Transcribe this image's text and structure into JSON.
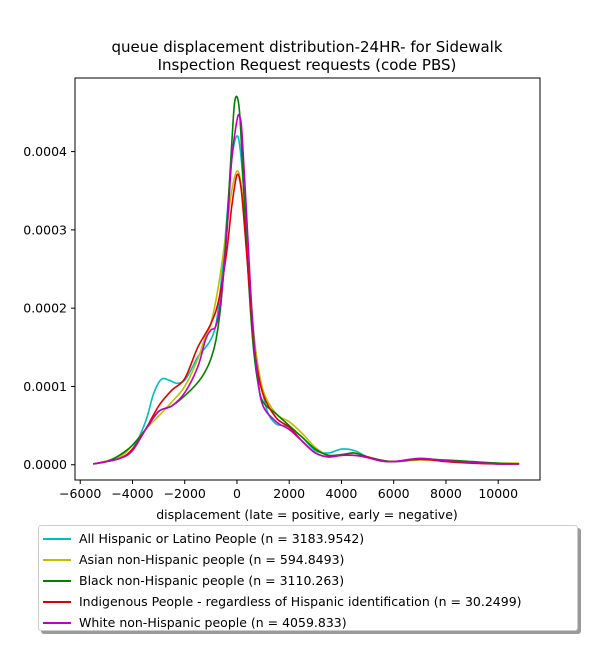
{
  "chart_data": {
    "type": "line",
    "title": "queue displacement distribution-24HR-  for Sidewalk\nInspection Request  requests (code PBS)",
    "xlabel": "displacement (late = positive, early = negative)",
    "ylabel": "",
    "xlim": [
      -6200,
      11600
    ],
    "ylim": [
      -1.95e-05,
      0.000494
    ],
    "x_ticks": [
      -6000,
      -4000,
      -2000,
      0,
      2000,
      4000,
      6000,
      8000,
      10000
    ],
    "x_tick_labels": [
      "−6000",
      "−4000",
      "−2000",
      "0",
      "2000",
      "4000",
      "6000",
      "8000",
      "10000"
    ],
    "y_ticks": [
      0.0,
      0.0001,
      0.0002,
      0.0003,
      0.0004
    ],
    "y_tick_labels": [
      "0.0000",
      "0.0001",
      "0.0002",
      "0.0003",
      "0.0004"
    ],
    "grid": false,
    "legend_placement": "below",
    "series": [
      {
        "name": "All Hispanic or Latino People (n = 3183.9542)",
        "color": "#00bfbf",
        "x": [
          -5500,
          -4500,
          -4000,
          -3500,
          -3200,
          -2900,
          -2600,
          -2300,
          -2000,
          -1700,
          -1500,
          -1200,
          -1000,
          -800,
          -600,
          -400,
          -200,
          0,
          150,
          300,
          500,
          700,
          1000,
          1200,
          1500,
          1800,
          2000,
          2500,
          3000,
          3500,
          4000,
          4500,
          5000,
          5500,
          6000,
          6500,
          7000,
          7500,
          8000,
          8500,
          9000,
          10000,
          10800
        ],
        "y": [
          1e-06,
          8e-06,
          2e-05,
          5.5e-05,
          9e-05,
          0.000109,
          0.000108,
          0.000104,
          0.000108,
          0.000125,
          0.000138,
          0.00015,
          0.00016,
          0.00018,
          0.000235,
          0.00031,
          0.00039,
          0.00042,
          0.000395,
          0.00033,
          0.00023,
          0.00015,
          9e-05,
          6.5e-05,
          5.2e-05,
          5e-05,
          4.8e-05,
          3.5e-05,
          1.8e-05,
          1.5e-05,
          2e-05,
          1.8e-05,
          1e-05,
          5e-06,
          4e-06,
          5e-06,
          8e-06,
          7e-06,
          5e-06,
          4e-06,
          3e-06,
          1e-06,
          1e-06
        ]
      },
      {
        "name": "Asian non-Hispanic people (n = 594.8493)",
        "color": "#bfbf00",
        "x": [
          -5500,
          -4500,
          -4000,
          -3500,
          -3000,
          -2500,
          -2000,
          -1500,
          -1200,
          -1000,
          -700,
          -400,
          -200,
          0,
          150,
          300,
          500,
          700,
          1000,
          1500,
          2000,
          2500,
          3000,
          3500,
          4000,
          4500,
          5000,
          5500,
          6000,
          7000,
          8000,
          9000,
          10000,
          10800
        ],
        "y": [
          1e-06,
          1e-05,
          2.5e-05,
          4.5e-05,
          6.2e-05,
          8e-05,
          0.0001,
          0.000135,
          0.000165,
          0.00018,
          0.00023,
          0.0003,
          0.00035,
          0.000375,
          0.00036,
          0.00031,
          0.00022,
          0.00015,
          9.5e-05,
          6.5e-05,
          5.5e-05,
          4e-05,
          2.2e-05,
          1.2e-05,
          1.2e-05,
          1.5e-05,
          1e-05,
          6e-06,
          4e-06,
          6e-06,
          5e-06,
          3e-06,
          2e-06,
          2e-06
        ]
      },
      {
        "name": "Black non-Hispanic people (n = 3110.263)",
        "color": "#008000",
        "x": [
          -5500,
          -5000,
          -4500,
          -4000,
          -3500,
          -3000,
          -2500,
          -2000,
          -1500,
          -1200,
          -1000,
          -800,
          -600,
          -400,
          -200,
          -100,
          0,
          100,
          200,
          400,
          600,
          800,
          1000,
          1500,
          2000,
          2500,
          3000,
          3500,
          4000,
          4500,
          5000,
          5500,
          6000,
          7000,
          8000,
          9000,
          10000,
          10800
        ],
        "y": [
          1e-06,
          4e-06,
          1.2e-05,
          2.5e-05,
          4.5e-05,
          6.8e-05,
          7.5e-05,
          8.8e-05,
          0.000105,
          0.00012,
          0.000135,
          0.00016,
          0.00021,
          0.0003,
          0.00041,
          0.00046,
          0.00047,
          0.00045,
          0.00039,
          0.00026,
          0.00016,
          0.000105,
          8e-05,
          6.5e-05,
          5e-05,
          3.5e-05,
          2e-05,
          1.2e-05,
          1.3e-05,
          1.5e-05,
          1e-05,
          6e-06,
          4e-06,
          7e-06,
          6e-06,
          4e-06,
          2e-06,
          1e-06
        ]
      },
      {
        "name": "Indigenous People - regardless of Hispanic identification (n = 30.2499)",
        "color": "#e00000",
        "x": [
          -5500,
          -4500,
          -4000,
          -3500,
          -3000,
          -2500,
          -2000,
          -1500,
          -1000,
          -700,
          -400,
          -200,
          0,
          150,
          300,
          500,
          700,
          1000,
          1500,
          2000,
          2500,
          3000,
          3500,
          4000,
          4500,
          5000,
          5500,
          6000,
          6500,
          7000,
          7500,
          8000,
          9000,
          10000,
          10800
        ],
        "y": [
          1e-06,
          8e-06,
          2e-05,
          4.5e-05,
          7.5e-05,
          9.5e-05,
          0.00011,
          0.00015,
          0.00018,
          0.00021,
          0.00027,
          0.00033,
          0.00037,
          0.000355,
          0.0003,
          0.000215,
          0.00014,
          9e-05,
          6e-05,
          4.8e-05,
          3e-05,
          1.5e-05,
          1e-05,
          1.2e-05,
          1.2e-05,
          1e-05,
          5e-06,
          4e-06,
          6e-06,
          7e-06,
          6e-06,
          4e-06,
          2e-06,
          1e-06,
          1e-06
        ]
      },
      {
        "name": "White non-Hispanic people (n = 4059.833)",
        "color": "#c000c0",
        "x": [
          -5500,
          -4500,
          -4000,
          -3500,
          -3000,
          -2500,
          -2000,
          -1500,
          -1200,
          -1000,
          -800,
          -600,
          -400,
          -200,
          0,
          100,
          200,
          400,
          600,
          800,
          1000,
          1500,
          2000,
          2500,
          3000,
          3500,
          4000,
          4500,
          5000,
          5500,
          6000,
          7000,
          8000,
          9000,
          10000,
          10800
        ],
        "y": [
          1e-06,
          8e-06,
          1.8e-05,
          4.5e-05,
          6.8e-05,
          7.5e-05,
          9.2e-05,
          0.000125,
          0.00016,
          0.000172,
          0.000178,
          0.000215,
          0.00029,
          0.00039,
          0.00044,
          0.000445,
          0.00042,
          0.0003,
          0.00018,
          0.00011,
          7.5e-05,
          5.5e-05,
          4.5e-05,
          3e-05,
          1.5e-05,
          1e-05,
          1.2e-05,
          1.2e-05,
          9e-06,
          5e-06,
          4e-06,
          8e-06,
          5e-06,
          3e-06,
          1e-06,
          1e-06
        ]
      }
    ]
  }
}
